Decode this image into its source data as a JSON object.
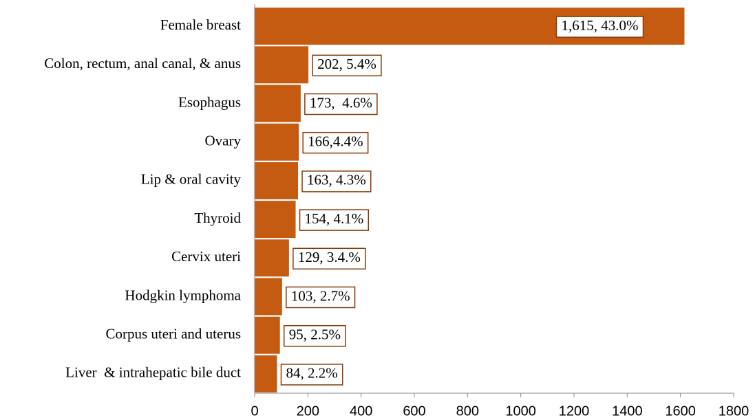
{
  "chart_data": {
    "type": "bar",
    "orientation": "horizontal",
    "categories": [
      "Female breast",
      "Colon, rectum, anal canal, & anus",
      "Esophagus",
      "Ovary",
      "Lip & oral cavity",
      "Thyroid",
      "Cervix uteri",
      "Hodgkin lymphoma",
      "Corpus uteri and uterus",
      "Liver  & intrahepatic bile duct"
    ],
    "values": [
      1615,
      202,
      173,
      166,
      163,
      154,
      129,
      103,
      95,
      84
    ],
    "value_labels": [
      "1,615, 43.0%",
      "202, 5.4%",
      "173,  4.6%",
      "166,4.4%",
      "163, 4.3%",
      "154, 4.1%",
      "129, 3.4.%",
      "103, 2.7%",
      "95, 2.5%",
      "84, 2.2%"
    ],
    "color": "#c55a11",
    "xlim": [
      0,
      1800
    ],
    "xticks": [
      0,
      200,
      400,
      600,
      800,
      1000,
      1200,
      1400,
      1600,
      1800
    ],
    "grid": false
  }
}
